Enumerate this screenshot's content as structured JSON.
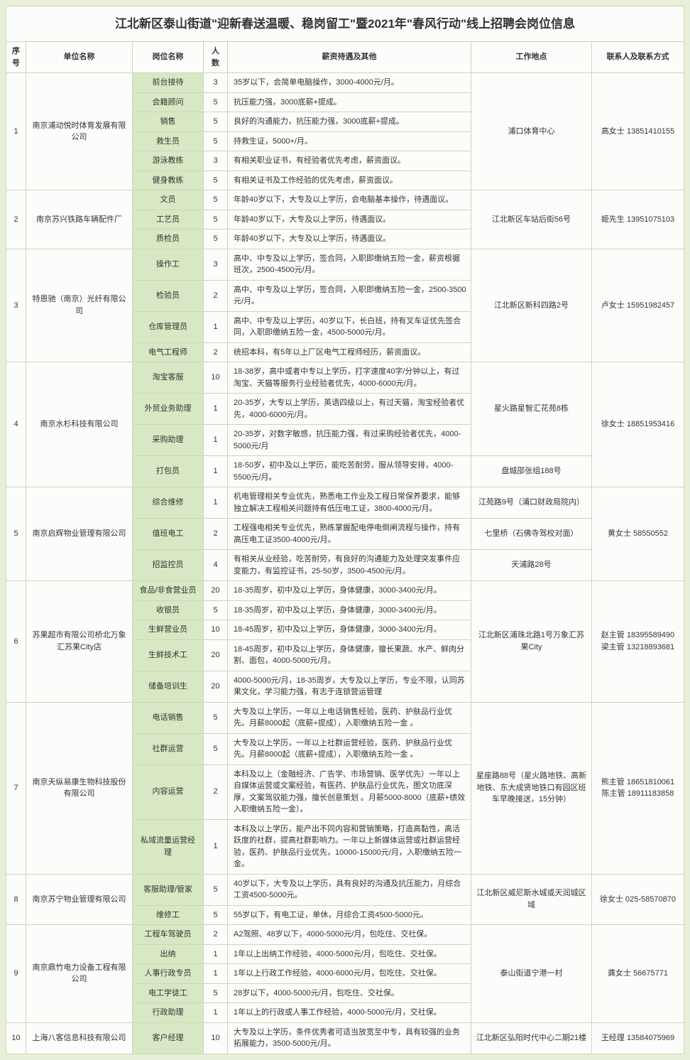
{
  "title": "江北新区泰山街道\"迎新春送温暖、稳岗留工\"暨2021年\"春风行动\"线上招聘会岗位信息",
  "headers": {
    "idx": "序号",
    "company": "单位名称",
    "position": "岗位名称",
    "num": "人数",
    "desc": "薪资待遇及其他",
    "location": "工作地点",
    "contact": "联系人及联系方式"
  },
  "companies": [
    {
      "idx": "1",
      "name": "南京浦动悦时体育发展有限公司",
      "location": "浦口体育中心",
      "contact": "高女士 13851410155",
      "jobs": [
        {
          "pos": "前台接待",
          "num": "3",
          "desc": "35岁以下，会简单电脑操作，3000-4000元/月。"
        },
        {
          "pos": "会籍顾问",
          "num": "5",
          "desc": "抗压能力强，3000底薪+提成。"
        },
        {
          "pos": "销售",
          "num": "5",
          "desc": "良好的沟通能力，抗压能力强，3000底薪+提成。"
        },
        {
          "pos": "救生员",
          "num": "5",
          "desc": "持救生证，5000+/月。"
        },
        {
          "pos": "游泳教练",
          "num": "3",
          "desc": "有相关职业证书，有经验者优先考虑，薪资面议。"
        },
        {
          "pos": "健身教练",
          "num": "5",
          "desc": "有相关证书及工作经验的优先考虑，薪资面议。"
        }
      ]
    },
    {
      "idx": "2",
      "name": "南京苏兴铁路车辆配件厂",
      "location": "江北新区车站后街56号",
      "contact": "姬先生 13951075103",
      "jobs": [
        {
          "pos": "文员",
          "num": "5",
          "desc": "年龄40岁以下，大专及以上学历，会电脑基本操作，待遇面议。"
        },
        {
          "pos": "工艺员",
          "num": "5",
          "desc": "年龄40岁以下，大专及以上学历，待遇面议。"
        },
        {
          "pos": "质检员",
          "num": "5",
          "desc": "年龄40岁以下，大专及以上学历，待遇面议。"
        }
      ]
    },
    {
      "idx": "3",
      "name": "特恩驰（南京）光纤有限公司",
      "location": "江北新区新科四路2号",
      "contact": "卢女士 15951982457",
      "jobs": [
        {
          "pos": "操作工",
          "num": "3",
          "desc": "高中、中专及以上学历，签合同，入职即缴纳五险一金，薪资根据班次，2500-4500元/月。"
        },
        {
          "pos": "检验员",
          "num": "2",
          "desc": "高中、中专及以上学历，签合同，入职即缴纳五险一金，2500-3500元/月。"
        },
        {
          "pos": "仓库管理员",
          "num": "1",
          "desc": "高中、中专及以上学历，40岁以下，长白班，持有叉车证优先签合同，入职即缴纳五险一金，4500-5000元/月。"
        },
        {
          "pos": "电气工程师",
          "num": "2",
          "desc": "统招本科，有5年以上厂区电气工程师经历，薪资面议。"
        }
      ]
    },
    {
      "idx": "4",
      "name": "南京水杉科技有限公司",
      "locations": [
        "星火路星智汇花苑8栋",
        "盘城邵张组188号"
      ],
      "locationSpans": [
        3,
        1
      ],
      "contact": "徐女士 18851953416",
      "jobs": [
        {
          "pos": "淘宝客服",
          "num": "10",
          "desc": "18-38岁，高中或者中专以上学历，打字速度40字/分钟以上，有过淘宝、天猫等服务行业经验者优先，4000-6000元/月。"
        },
        {
          "pos": "外贸业务助理",
          "num": "1",
          "desc": "20-35岁，大专以上学历，英语四级以上，有过天猫，淘宝经验者优先，4000-6000元/月。"
        },
        {
          "pos": "采购助理",
          "num": "1",
          "desc": "20-35岁，对数字敏感，抗压能力强，有过采购经验者优先，4000-5000元/月"
        },
        {
          "pos": "打包员",
          "num": "1",
          "desc": "18-50岁，初中及以上学历，能吃苦耐劳，服从领导安排，4000-5500元/月。"
        }
      ]
    },
    {
      "idx": "5",
      "name": "南京启辉物业管理有限公司",
      "locations": [
        "江苑路9号（浦口财政局院内）",
        "七里桥（石佛寺驾校对面）",
        "天浦路28号"
      ],
      "locationSpans": [
        1,
        1,
        1
      ],
      "contact": "黄女士 58550552",
      "jobs": [
        {
          "pos": "综合维修",
          "num": "1",
          "desc": "机电管理相关专业优先，熟悉电工作业及工程日常保养要求，能够独立解决工程相关问题持有低压电工证，3800-4000元/月。"
        },
        {
          "pos": "值班电工",
          "num": "2",
          "desc": "工程强电相关专业优先，熟练掌握配电停电倒闸流程与操作，持有高压电工证3500-4000元/月。"
        },
        {
          "pos": "招监控员",
          "num": "4",
          "desc": "有相关从业经验，吃苦耐劳，有良好的沟通能力及处理突发事件应变能力，有监控证书，25-50岁，3500-4500元/月。"
        }
      ]
    },
    {
      "idx": "6",
      "name": "苏果超市有限公司桥北万象汇苏果City店",
      "location": "江北新区浦珠北路1号万象汇苏果City",
      "contact": "赵主管 18395589490\n梁主管 13218893681",
      "jobs": [
        {
          "pos": "食品/非食营业员",
          "num": "20",
          "desc": "18-35周岁，初中及以上学历，身体健康，3000-3400元/月。"
        },
        {
          "pos": "收银员",
          "num": "5",
          "desc": "18-35周岁，初中及以上学历，身体健康，3000-3400元/月。"
        },
        {
          "pos": "生鲜营业员",
          "num": "10",
          "desc": "18-45周岁，初中及以上学历，身体健康，3000-3400元/月。"
        },
        {
          "pos": "生鲜技术工",
          "num": "20",
          "desc": "18-45周岁，初中及以上学历，身体健康，擅长果蔬、水产、鲜肉分割、面包，4000-5000元/月。"
        },
        {
          "pos": "储备培训生",
          "num": "20",
          "desc": "4000-5000元/月，18-35周岁，大专及以上学历，专业不限，认同苏果文化，学习能力强，有志于连锁营运管理"
        }
      ]
    },
    {
      "idx": "7",
      "name": "南京天纵易康生物科技股份有限公司",
      "location": "星座路88号（星火路地铁、高新地铁、东大成贤地铁口有园区班车早晚接送，15分钟）",
      "contact": "熊主管 18651810061\n陈主管 18911183858",
      "jobs": [
        {
          "pos": "电话销售",
          "num": "5",
          "desc": "大专及以上学历，一年以上电话销售经验，医药、护肤品行业优先。月薪8000起（底薪+提成），入职缴纳五险一金 。"
        },
        {
          "pos": "社群运营",
          "num": "5",
          "desc": "大专及以上学历，一年以上社群运营经验，医药、护肤品行业优先。月薪8000起（底薪+提成），入职缴纳五险一金 。"
        },
        {
          "pos": "内容运营",
          "num": "2",
          "desc": "本科及以上（金融经济、广告学、市场营销、医学优先）一年以上自媒体运营或文案经验，有医药、护肤品行业优先，图文功底深厚，文案驾驭能力强，擅长创意策划 。月薪5000-8000（底薪+绩效入职缴纳五险一金）。"
        },
        {
          "pos": "私域流量运营经理",
          "num": "1",
          "desc": "本科及以上学历，能产出不同内容和营销策略，打造高黏性，高活跃度的社群，提高社群影响力。一年以上新媒体运营或社群运营经验，医药、护肤品行业优先，10000-15000元/月，入职缴纳五险一金。"
        }
      ]
    },
    {
      "idx": "8",
      "name": "南京苏宁物业管理有限公司",
      "location": "江北新区威尼斯水城或天润城区域",
      "contact": "徐女士 025-58570870",
      "jobs": [
        {
          "pos": "客服助理/管家",
          "num": "5",
          "desc": "40岁以下，大专及以上学历，具有良好的沟通及抗压能力，月综合工资4500-5000元。"
        },
        {
          "pos": "维修工",
          "num": "5",
          "desc": "55岁以下，有电工证，单休，月综合工资4500-5000元。"
        }
      ]
    },
    {
      "idx": "9",
      "name": "南京鼎竹电力设备工程有限公司",
      "location": "泰山街道宁港一村",
      "contact": "龚女士 56675771",
      "jobs": [
        {
          "pos": "工程车驾驶员",
          "num": "2",
          "desc": "A2驾照、48岁以下，4000-5000元/月，包吃住、交社保。"
        },
        {
          "pos": "出纳",
          "num": "1",
          "desc": "1年以上出纳工作经验，4000-5000元/月，包吃住、交社保。"
        },
        {
          "pos": "人事行政专员",
          "num": "1",
          "desc": "1年以上行政工作经验，4000-6000元/月，包吃住、交社保。"
        },
        {
          "pos": "电工学徒工",
          "num": "5",
          "desc": "28岁以下，4000-5000元/月，包吃住、交社保。"
        },
        {
          "pos": "行政助理",
          "num": "1",
          "desc": "1年以上的行政或人事工作经验，4000-5000元/月，交社保。"
        }
      ]
    },
    {
      "idx": "10",
      "name": "上海八客信息科技有限公司",
      "location": "江北新区弘阳时代中心二期21楼",
      "contact": "王经理 13584075969",
      "jobs": [
        {
          "pos": "客户经理",
          "num": "10",
          "desc": "大专及以上学历，条件优秀者可适当放宽至中专，具有较强的业务拓展能力，3500-5000元/月。"
        }
      ]
    }
  ]
}
